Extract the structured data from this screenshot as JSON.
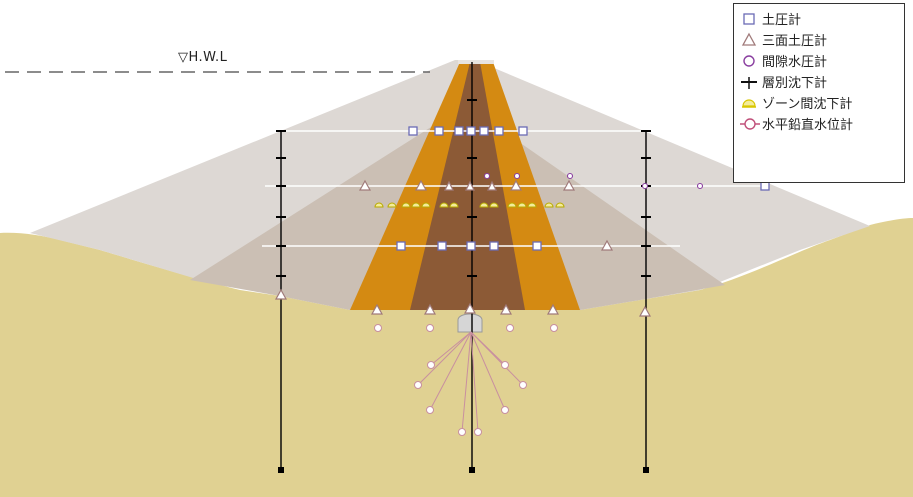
{
  "water_level": {
    "label": "▽H.W.L"
  },
  "legend": {
    "items": [
      {
        "label": "土圧計",
        "symbol": "square-icon",
        "color": "#6b6bb5"
      },
      {
        "label": "三面土圧計",
        "symbol": "triangle-icon",
        "color": "#a07a7a"
      },
      {
        "label": "間隙水圧計",
        "symbol": "circle-icon",
        "color": "#8a3fa0"
      },
      {
        "label": "層別沈下計",
        "symbol": "cross-icon",
        "color": "#111111"
      },
      {
        "label": "ゾーン間沈下計",
        "symbol": "half-dome-icon",
        "color": "#d8c600"
      },
      {
        "label": "水平鉛直水位計",
        "symbol": "line-circle-icon",
        "color": "#c0507a"
      }
    ]
  },
  "colors": {
    "ground": "#e0d192",
    "outer_shell": "#ddd8d4",
    "mid_shell": "#cbbfb4",
    "filter": "#d48a12",
    "core": "#8c5a36",
    "instrument_line": "#ffffff",
    "rod": "#000000"
  }
}
